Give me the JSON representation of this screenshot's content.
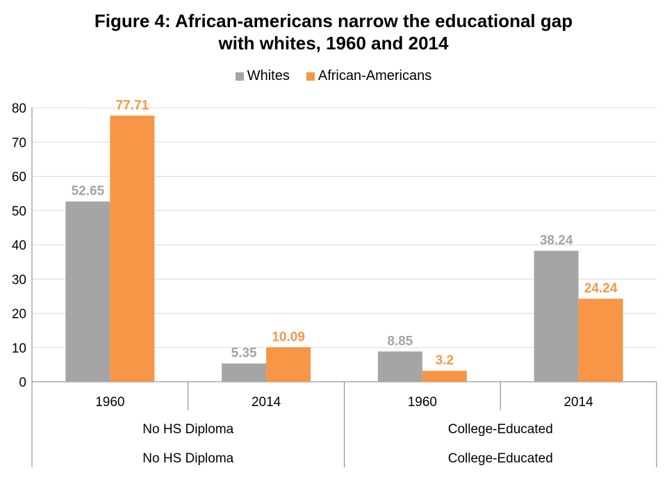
{
  "chart_data": {
    "type": "bar",
    "title_line1": "Figure 4: African-americans narrow the educational gap",
    "title_line2": "with whites, 1960 and 2014",
    "ylim": [
      0,
      80
    ],
    "yticks": [
      "0",
      "10",
      "20",
      "30",
      "40",
      "50",
      "60",
      "70",
      "80"
    ],
    "categories": [
      "1960",
      "2014",
      "1960",
      "2014"
    ],
    "groups": [
      "No HS Diploma",
      "College-Educated"
    ],
    "group_repeat": [
      "No HS Diploma",
      "College-Educated"
    ],
    "series": [
      {
        "name": "Whites",
        "color": "#a5a5a5",
        "values": [
          52.65,
          5.35,
          8.85,
          38.24
        ],
        "labels": [
          "52.65",
          "5.35",
          "8.85",
          "38.24"
        ]
      },
      {
        "name": "African-Americans",
        "color": "#f79646",
        "values": [
          77.71,
          10.09,
          3.2,
          24.24
        ],
        "labels": [
          "77.71",
          "10.09",
          "3.2",
          "24.24"
        ]
      }
    ],
    "grid": true,
    "legend_position": "top"
  }
}
